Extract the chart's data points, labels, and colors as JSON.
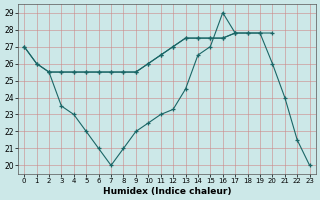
{
  "xlabel": "Humidex (Indice chaleur)",
  "bg_color": "#cce8e8",
  "grid_color_major": "#bb9999",
  "grid_color_minor": "#ddbbbb",
  "line_color": "#1a6666",
  "xlim": [
    -0.5,
    23.5
  ],
  "ylim": [
    19.5,
    29.5
  ],
  "yticks": [
    20,
    21,
    22,
    23,
    24,
    25,
    26,
    27,
    28,
    29
  ],
  "xticks": [
    0,
    1,
    2,
    3,
    4,
    5,
    6,
    7,
    8,
    9,
    10,
    11,
    12,
    13,
    14,
    15,
    16,
    17,
    18,
    19,
    20,
    21,
    22,
    23
  ],
  "line_a_x": [
    0,
    1,
    2,
    3,
    4,
    5,
    6,
    7,
    8,
    9,
    10,
    11,
    12,
    13,
    14,
    15,
    16,
    17,
    18,
    19,
    20,
    21,
    22,
    23
  ],
  "line_a_y": [
    27.0,
    26.0,
    25.5,
    25.5,
    25.5,
    25.5,
    25.5,
    25.5,
    25.5,
    25.5,
    26.0,
    26.5,
    27.0,
    27.5,
    27.5,
    27.5,
    27.5,
    27.8,
    27.8,
    27.8,
    26.0,
    24.0,
    21.5,
    20.0
  ],
  "line_b_x": [
    0,
    1,
    2,
    3,
    4,
    5,
    6,
    7,
    8,
    9,
    10,
    11,
    12,
    13,
    14,
    15,
    16,
    17
  ],
  "line_b_y": [
    27.0,
    26.0,
    25.5,
    23.5,
    23.0,
    22.0,
    21.0,
    20.0,
    21.0,
    22.0,
    22.5,
    23.0,
    23.3,
    24.5,
    26.5,
    27.0,
    29.0,
    27.8
  ],
  "line_c_x": [
    2,
    3,
    4,
    5,
    6,
    7,
    8,
    9,
    10,
    11,
    12,
    13,
    14,
    15,
    16,
    17,
    18,
    19,
    20
  ],
  "line_c_y": [
    25.5,
    25.5,
    25.5,
    25.5,
    25.5,
    25.5,
    25.5,
    25.5,
    26.0,
    26.5,
    27.0,
    27.5,
    27.5,
    27.5,
    27.5,
    27.8,
    27.8,
    27.8,
    27.8
  ]
}
